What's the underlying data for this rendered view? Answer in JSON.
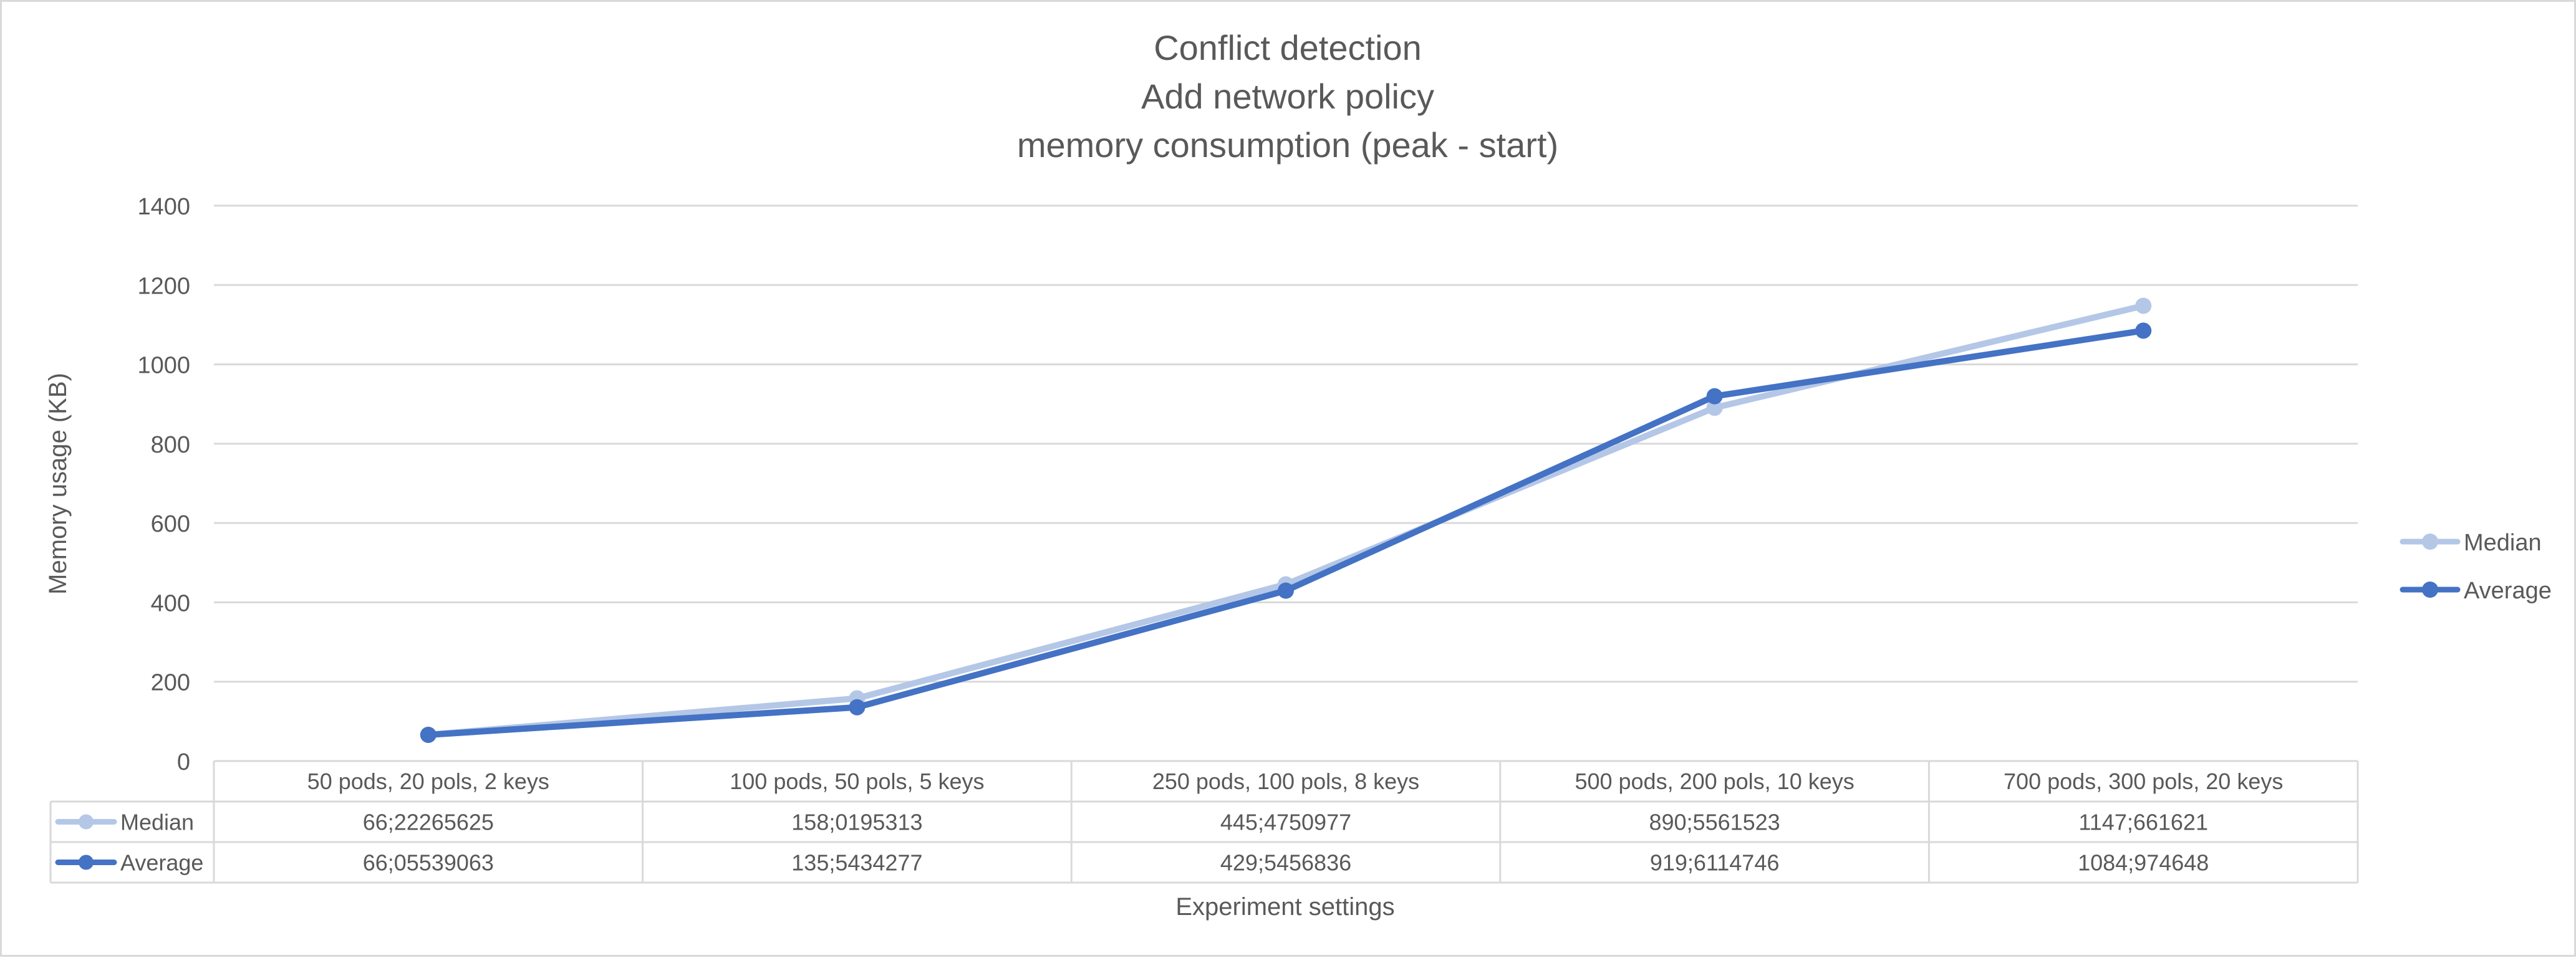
{
  "chart_data": {
    "type": "line",
    "title_lines": [
      "Conflict detection",
      "Add network policy",
      "memory consumption (peak - start)"
    ],
    "xlabel": "Experiment settings",
    "ylabel": "Memory usage (KB)",
    "ylim": [
      0,
      1400
    ],
    "yticks": [
      0,
      200,
      400,
      600,
      800,
      1000,
      1200,
      1400
    ],
    "ytick_labels": [
      "0",
      "200",
      "400",
      "600",
      "800",
      "1000",
      "1200",
      "1400"
    ],
    "grid": true,
    "legend_position": "right",
    "categories": [
      "50 pods, 20 pols, 2 keys",
      "100 pods, 50 pols, 5 keys",
      "250 pods, 100 pols, 8 keys",
      "500 pods, 200 pols, 10 keys",
      "700 pods, 300 pols, 20 keys"
    ],
    "series": [
      {
        "name": "Median",
        "color": "#b4c7e7",
        "values": [
          66.22265625,
          158.0195313,
          445.4750977,
          890.5561523,
          1147.661621
        ],
        "value_labels": [
          "66;22265625",
          "158;0195313",
          "445;4750977",
          "890;5561523",
          "1147;661621"
        ]
      },
      {
        "name": "Average",
        "color": "#4472c4",
        "values": [
          66.05539063,
          135.5434277,
          429.5456836,
          919.6114746,
          1084.974648
        ],
        "value_labels": [
          "66;05539063",
          "135;5434277",
          "429;5456836",
          "919;6114746",
          "1084;974648"
        ]
      }
    ],
    "data_table": true
  }
}
